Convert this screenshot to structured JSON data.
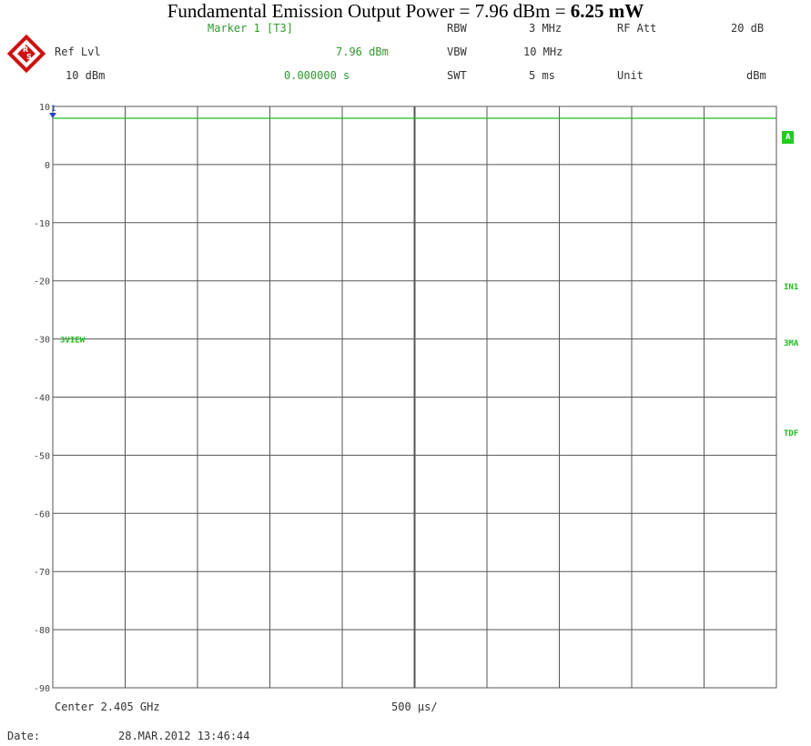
{
  "title": {
    "prefix": "Fundamental Emission Output Power =  7.96 dBm = ",
    "bold": "6.25 mW"
  },
  "header": {
    "marker_label": "Marker 1 [T3]",
    "marker_value": "7.96 dBm",
    "marker_time": "0.000000 s",
    "ref_lvl_label": "Ref Lvl",
    "ref_lvl_value": "10 dBm",
    "rbw_label": "RBW",
    "rbw_value": "3 MHz",
    "vbw_label": "VBW",
    "vbw_value": "10 MHz",
    "swt_label": "SWT",
    "swt_value": "5 ms",
    "rf_att_label": "RF Att",
    "rf_att_value": "20 dB",
    "unit_label": "Unit",
    "unit_value": "dBm"
  },
  "footer": {
    "center": "Center 2.405 GHz",
    "span": "500 µs/",
    "date_label": "Date:",
    "date_value": "28.MAR.2012  13:46:44"
  },
  "side_labels": {
    "a": "A",
    "in1": "IN1",
    "mode": "3MA",
    "tdf": "TDF",
    "view": "3VIEW"
  },
  "marker_number": "1",
  "colors": {
    "grid": "#555555",
    "trace": "#22bb22",
    "marker": "#2244cc",
    "annotation": "#2e9a2e"
  },
  "chart_data": {
    "type": "line",
    "title": "Fundamental Emission Output Power =  7.96 dBm = 6.25 mW",
    "xlabel": "",
    "ylabel": "",
    "ylim": [
      -90,
      10
    ],
    "xlim": [
      0,
      5
    ],
    "x_unit": "ms",
    "y_ticks": [
      10,
      0,
      -10,
      -20,
      -30,
      -40,
      -50,
      -60,
      -70,
      -80,
      -90
    ],
    "x_divisions": 10,
    "grid": true,
    "series": [
      {
        "x": [
          0,
          5
        ],
        "values": [
          7.96,
          7.96
        ]
      }
    ],
    "marker": {
      "x": 0,
      "y": 7.96
    }
  }
}
